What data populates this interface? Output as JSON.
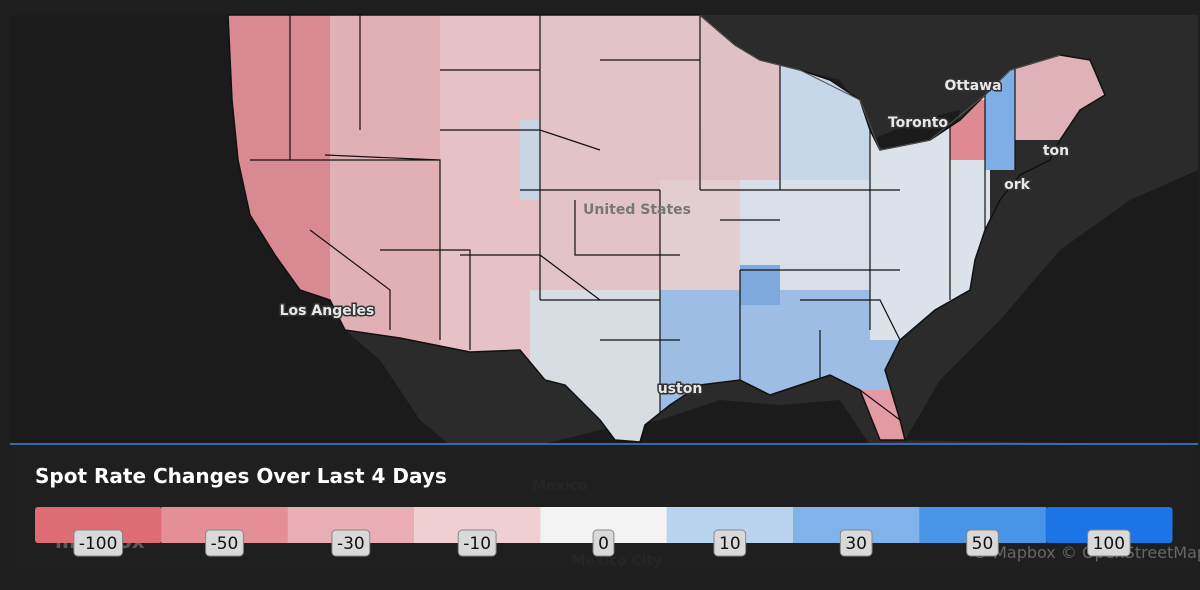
{
  "map": {
    "places": [
      {
        "name": "Ottawa"
      },
      {
        "name": "Toronto"
      },
      {
        "name": "United States"
      },
      {
        "name": "Los Angeles"
      },
      {
        "name": "ork"
      },
      {
        "name": "ton"
      },
      {
        "name": "uston"
      },
      {
        "name": "Mexico"
      },
      {
        "name": "Mexico City"
      }
    ],
    "logo": "mapbox",
    "attribution": "© Mapbox © OpenStreetMap Improve this map"
  },
  "legend": {
    "title": "Spot Rate Changes Over Last 4 Days",
    "stops": [
      {
        "value": -100,
        "color": "#df6b75"
      },
      {
        "value": -50,
        "color": "#e48e96"
      },
      {
        "value": -30,
        "color": "#e9adb3"
      },
      {
        "value": -10,
        "color": "#f0cfd3"
      },
      {
        "value": 0,
        "color": "#f3f3f3"
      },
      {
        "value": 10,
        "color": "#b9d3ee"
      },
      {
        "value": 30,
        "color": "#80b3ec"
      },
      {
        "value": 50,
        "color": "#4894e6"
      },
      {
        "value": 100,
        "color": "#1c74e6"
      }
    ]
  }
}
